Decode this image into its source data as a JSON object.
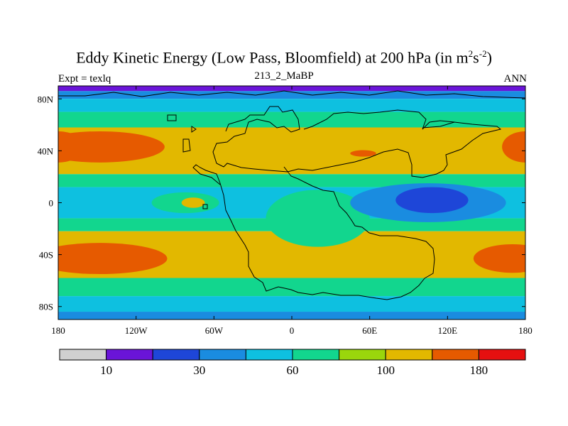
{
  "chart_data": {
    "type": "heatmap",
    "title_main": "Eddy Kinetic Energy (Low Pass, Bloomfield) at 200 hPa (in m",
    "title_sup1": "2",
    "title_mid": "s",
    "title_sup2": "-2",
    "title_end": ")",
    "subtitle": "213_2_MaBP",
    "left_label": "Expt = texlq",
    "right_label": "ANN",
    "xlim": [
      -180,
      180
    ],
    "ylim": [
      -90,
      90
    ],
    "x_ticks": [
      {
        "value": -180,
        "label": "180"
      },
      {
        "value": -120,
        "label": "120W"
      },
      {
        "value": -60,
        "label": "60W"
      },
      {
        "value": 0,
        "label": "0"
      },
      {
        "value": 60,
        "label": "60E"
      },
      {
        "value": 120,
        "label": "120E"
      },
      {
        "value": 180,
        "label": "180"
      }
    ],
    "y_ticks": [
      {
        "value": 80,
        "label": "80N"
      },
      {
        "value": 40,
        "label": "40N"
      },
      {
        "value": 0,
        "label": "0"
      },
      {
        "value": -40,
        "label": "40S"
      },
      {
        "value": -80,
        "label": "80S"
      }
    ],
    "colorbar": {
      "colors": [
        "#d0d0d0",
        "#6a14d8",
        "#1e46d8",
        "#1a8ce0",
        "#0ec0e0",
        "#12d68e",
        "#9ad60c",
        "#e2b800",
        "#e65a00",
        "#e61010"
      ],
      "labels": [
        {
          "after_box": 1,
          "text": "10"
        },
        {
          "after_box": 3,
          "text": "30"
        },
        {
          "after_box": 5,
          "text": "60"
        },
        {
          "after_box": 7,
          "text": "100"
        },
        {
          "after_box": 9,
          "text": "180"
        }
      ]
    },
    "zonal_bands": [
      {
        "lat_top": 90,
        "lat_bot": 86,
        "level": 1
      },
      {
        "lat_top": 86,
        "lat_bot": 80,
        "level": 3
      },
      {
        "lat_top": 80,
        "lat_bot": 70,
        "level": 4
      },
      {
        "lat_top": 70,
        "lat_bot": 58,
        "level": 5
      },
      {
        "lat_top": 58,
        "lat_bot": 22,
        "level": 7
      },
      {
        "lat_top": 22,
        "lat_bot": 12,
        "level": 5
      },
      {
        "lat_top": 12,
        "lat_bot": -12,
        "level": 4
      },
      {
        "lat_top": -12,
        "lat_bot": -22,
        "level": 5
      },
      {
        "lat_top": -22,
        "lat_bot": -58,
        "level": 7
      },
      {
        "lat_top": -58,
        "lat_bot": -72,
        "level": 5
      },
      {
        "lat_top": -72,
        "lat_bot": -84,
        "level": 4
      },
      {
        "lat_top": -84,
        "lat_bot": -90,
        "level": 3
      }
    ],
    "features": [
      {
        "shape": "ellipse",
        "lon": -148,
        "lat": 43,
        "rlon": 50,
        "rlat": 12,
        "level": 8
      },
      {
        "shape": "ellipse",
        "lon": -180,
        "lat": 43,
        "rlon": 20,
        "rlat": 12,
        "level": 8
      },
      {
        "shape": "ellipse",
        "lon": 180,
        "lat": 43,
        "rlon": 18,
        "rlat": 12,
        "level": 8
      },
      {
        "shape": "ellipse",
        "lon": 55,
        "lat": 38,
        "rlon": 10,
        "rlat": 2.5,
        "level": 8
      },
      {
        "shape": "ellipse",
        "lon": -148,
        "lat": -43,
        "rlon": 52,
        "rlat": 12,
        "level": 8
      },
      {
        "shape": "ellipse",
        "lon": 170,
        "lat": -43,
        "rlon": 30,
        "rlat": 11,
        "level": 8
      },
      {
        "shape": "ellipse",
        "lon": -82,
        "lat": 0,
        "rlon": 26,
        "rlat": 8,
        "level": 5
      },
      {
        "shape": "ellipse",
        "lon": -76,
        "lat": 0,
        "rlon": 9,
        "rlat": 4,
        "level": 7
      },
      {
        "shape": "ellipse",
        "lon": 20,
        "lat": -12,
        "rlon": 40,
        "rlat": 22,
        "level": 5
      },
      {
        "shape": "ellipse",
        "lon": 105,
        "lat": 0,
        "rlon": 60,
        "rlat": 15,
        "level": 3
      },
      {
        "shape": "ellipse",
        "lon": 108,
        "lat": 2,
        "rlon": 28,
        "rlat": 10,
        "level": 2
      }
    ],
    "land_outline_lonlat": [
      [
        -170,
        80
      ],
      [
        -150,
        82
      ],
      [
        -100,
        84
      ],
      [
        -60,
        86
      ],
      [
        -20,
        82
      ],
      [
        20,
        84
      ],
      [
        60,
        80
      ],
      [
        100,
        84
      ],
      [
        140,
        82
      ],
      [
        180,
        80
      ]
    ]
  }
}
